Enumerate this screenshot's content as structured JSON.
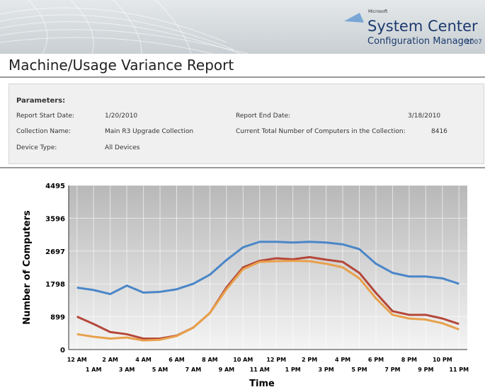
{
  "header": {
    "brand": "Microsoft",
    "product": "System Center",
    "subproduct": "Configuration Manager",
    "version": "2007"
  },
  "report_title": "Machine/Usage Variance Report",
  "parameters": {
    "title": "Parameters:",
    "items": [
      {
        "label": "Report Start Date:",
        "value": "1/20/2010"
      },
      {
        "label": "Report End Date:",
        "value": "3/18/2010"
      },
      {
        "label": "Collection Name:",
        "value": "Main R3 Upgrade Collection"
      },
      {
        "label": "Current Total Number of Computers in the Collection:",
        "value": "8416"
      },
      {
        "label": "Device Type:",
        "value": "All Devices"
      }
    ]
  },
  "chart_data": {
    "type": "line",
    "x_label": "Time",
    "y_label": "Number of Computers",
    "categories": [
      "12 AM",
      "1 AM",
      "2 AM",
      "3 AM",
      "4 AM",
      "5 AM",
      "6 AM",
      "7 AM",
      "8 AM",
      "9 AM",
      "10 AM",
      "11 AM",
      "12 PM",
      "1 PM",
      "2 PM",
      "3 PM",
      "4 PM",
      "5 PM",
      "6 PM",
      "7 PM",
      "8 PM",
      "9 PM",
      "10 PM",
      "11 PM"
    ],
    "ylim": [
      0,
      4495
    ],
    "yticks": [
      0,
      899,
      1798,
      2697,
      3596,
      4495
    ],
    "grid": true,
    "series": [
      {
        "color": "#4a86c8",
        "values": [
          1695,
          1630,
          1520,
          1750,
          1560,
          1580,
          1650,
          1800,
          2050,
          2450,
          2800,
          2950,
          2950,
          2930,
          2950,
          2930,
          2880,
          2750,
          2350,
          2100,
          2000,
          2000,
          1950,
          1800
        ]
      },
      {
        "color": "#b5473a",
        "values": [
          900,
          700,
          480,
          420,
          300,
          300,
          380,
          600,
          1000,
          1700,
          2250,
          2430,
          2500,
          2470,
          2530,
          2460,
          2400,
          2100,
          1550,
          1050,
          950,
          950,
          850,
          700
        ]
      },
      {
        "color": "#e8a04a",
        "values": [
          420,
          350,
          300,
          330,
          250,
          270,
          370,
          600,
          1000,
          1650,
          2200,
          2400,
          2420,
          2430,
          2420,
          2350,
          2250,
          1950,
          1400,
          950,
          850,
          820,
          720,
          550
        ]
      }
    ]
  }
}
